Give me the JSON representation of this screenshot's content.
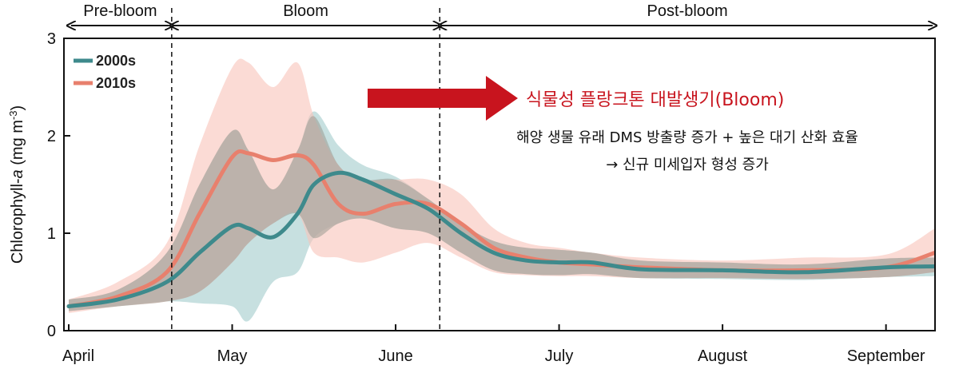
{
  "chart_data": {
    "type": "line",
    "ylabel_main": "Chlorophyll-",
    "ylabel_italic": "a",
    "ylabel_unit": " (mg m",
    "ylabel_sup": "-3",
    "ylabel_end": ")",
    "ylim": [
      0,
      3
    ],
    "xlim": [
      0,
      5.3
    ],
    "yticks": [
      "0",
      "1",
      "2",
      "3"
    ],
    "xticks": [
      {
        "x": 0,
        "label": "April"
      },
      {
        "x": 1,
        "label": "May"
      },
      {
        "x": 2,
        "label": "June"
      },
      {
        "x": 3,
        "label": "July"
      },
      {
        "x": 4,
        "label": "August"
      },
      {
        "x": 5,
        "label": "September"
      }
    ],
    "phases": [
      {
        "label": "Pre-bloom",
        "start": 0,
        "end": 0.63
      },
      {
        "label": "Bloom",
        "start": 0.63,
        "end": 2.27
      },
      {
        "label": "Post-bloom",
        "start": 2.27,
        "end": 5.3
      }
    ],
    "phase_boundaries": [
      0.63,
      2.27
    ],
    "series": [
      {
        "name": "2000s",
        "color": "#3e8a8c",
        "band_color": "#a9cfd0",
        "x": [
          0,
          0.3,
          0.6,
          0.8,
          1.0,
          1.1,
          1.25,
          1.4,
          1.5,
          1.65,
          1.8,
          2.0,
          2.2,
          2.4,
          2.6,
          2.8,
          3.0,
          3.2,
          3.5,
          4.0,
          4.5,
          5.0,
          5.3
        ],
        "values": [
          0.25,
          0.32,
          0.5,
          0.8,
          1.07,
          1.05,
          0.96,
          1.2,
          1.5,
          1.62,
          1.55,
          1.4,
          1.25,
          1.0,
          0.8,
          0.72,
          0.7,
          0.7,
          0.63,
          0.62,
          0.6,
          0.65,
          0.66
        ],
        "lower": [
          0.2,
          0.25,
          0.3,
          0.28,
          0.25,
          0.1,
          0.5,
          0.6,
          0.95,
          1.1,
          1.15,
          1.05,
          1.0,
          0.8,
          0.62,
          0.58,
          0.57,
          0.58,
          0.54,
          0.53,
          0.52,
          0.55,
          0.56
        ],
        "upper": [
          0.32,
          0.42,
          0.8,
          1.5,
          2.05,
          1.85,
          1.45,
          1.85,
          2.25,
          1.9,
          1.7,
          1.58,
          1.35,
          1.1,
          0.92,
          0.85,
          0.83,
          0.8,
          0.72,
          0.7,
          0.68,
          0.74,
          0.75
        ]
      },
      {
        "name": "2010s",
        "color": "#e8806d",
        "band_color": "#f8c3b9",
        "x": [
          0,
          0.3,
          0.6,
          0.8,
          1.0,
          1.1,
          1.25,
          1.4,
          1.5,
          1.65,
          1.8,
          2.0,
          2.2,
          2.4,
          2.6,
          2.8,
          3.0,
          3.2,
          3.5,
          4.0,
          4.5,
          5.0,
          5.3
        ],
        "values": [
          0.25,
          0.35,
          0.6,
          1.2,
          1.78,
          1.82,
          1.75,
          1.8,
          1.7,
          1.3,
          1.2,
          1.3,
          1.3,
          1.1,
          0.85,
          0.75,
          0.7,
          0.68,
          0.65,
          0.62,
          0.62,
          0.65,
          0.8
        ],
        "lower": [
          0.18,
          0.25,
          0.3,
          0.4,
          0.7,
          0.9,
          1.1,
          1.2,
          0.8,
          0.75,
          0.7,
          0.8,
          0.9,
          0.75,
          0.6,
          0.57,
          0.56,
          0.56,
          0.54,
          0.54,
          0.53,
          0.55,
          0.6
        ],
        "upper": [
          0.32,
          0.5,
          0.9,
          1.9,
          2.7,
          2.75,
          2.5,
          2.75,
          2.2,
          1.7,
          1.55,
          1.55,
          1.55,
          1.4,
          1.05,
          0.9,
          0.85,
          0.8,
          0.75,
          0.72,
          0.75,
          0.78,
          1.05
        ]
      }
    ],
    "annotation": {
      "title": "식물성 플랑크톤 대발생기(Bloom)",
      "line1": "해양 생물 유래 DMS 방출량 증가 + 높은 대기 산화 효율",
      "line2": "→ 신규 미세입자 형성 증가",
      "arrow_color": "#c8141e"
    }
  }
}
